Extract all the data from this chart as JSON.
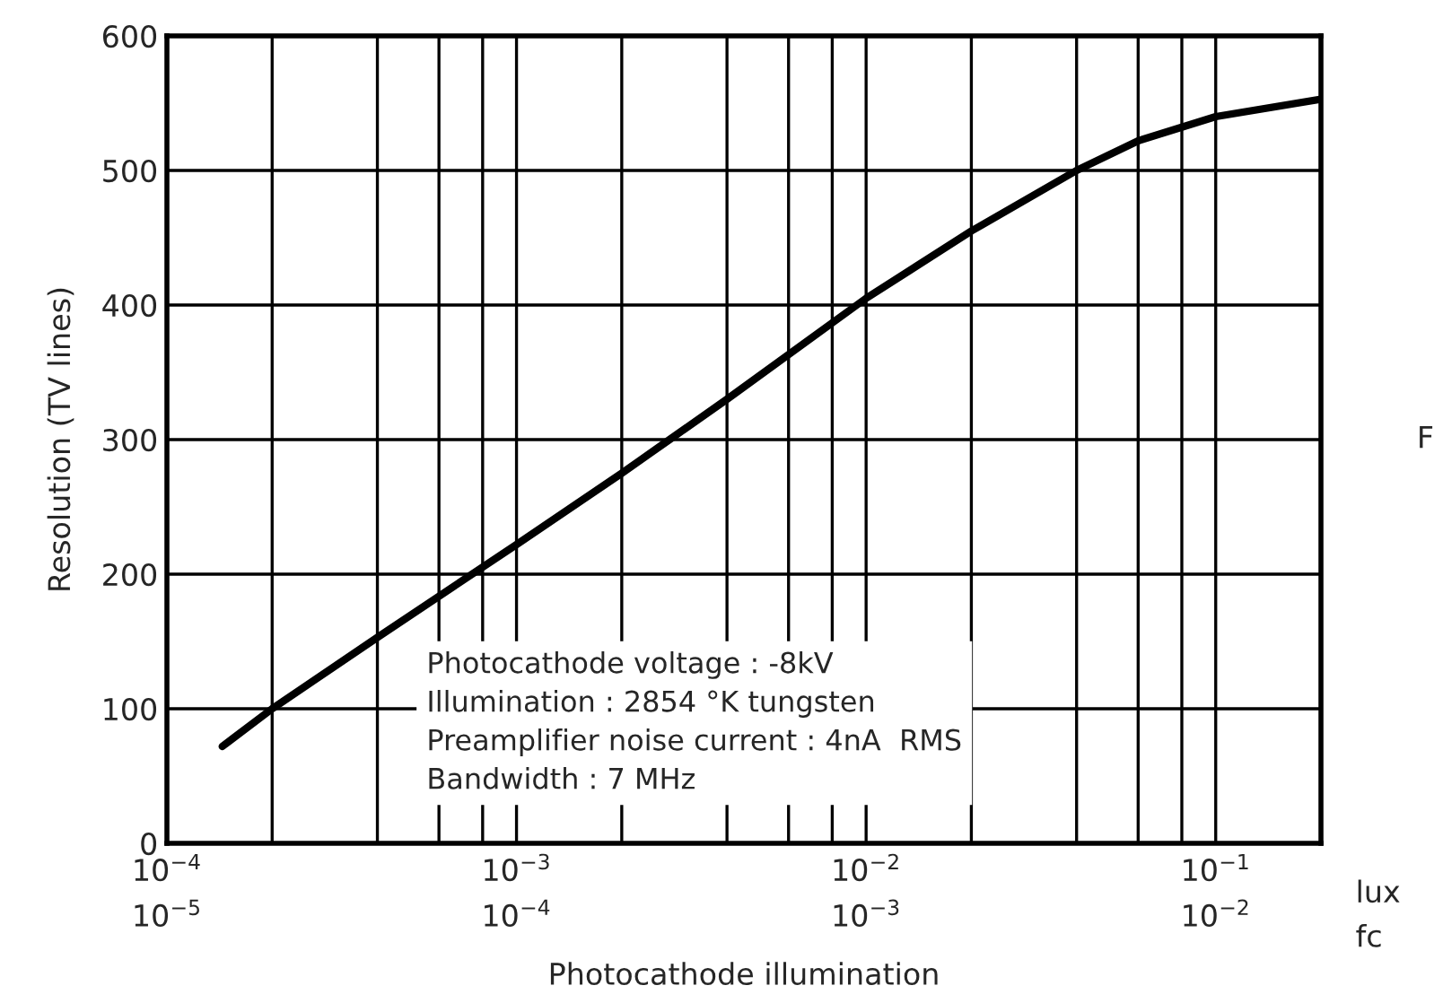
{
  "chart_data": {
    "type": "line",
    "xlabel": "Photocathode illumination",
    "ylabel": "Resolution (TV lines)",
    "log": "x",
    "x": [
      0.000144,
      0.0002,
      0.0004,
      0.001,
      0.002,
      0.00274,
      0.004,
      0.01,
      0.02,
      0.04,
      0.06,
      0.1,
      0.2
    ],
    "series": [
      {
        "color": "#000000",
        "values": [
          72,
          100,
          153,
          222,
          275,
          300,
          330,
          405,
          455,
          500,
          522,
          540,
          553
        ]
      }
    ],
    "xlim": [
      0.0001,
      0.2
    ],
    "xticks": [
      {
        "value": 0.0001,
        "label": "10$^{−4}$"
      },
      {
        "value": 0.0002,
        "label": null
      },
      {
        "value": 0.0004,
        "label": null
      },
      {
        "value": 0.0006,
        "label": null
      },
      {
        "value": 0.0008,
        "label": null
      },
      {
        "value": 0.001,
        "label": "10$^{−3}$"
      },
      {
        "value": 0.002,
        "label": null
      },
      {
        "value": 0.004,
        "label": null
      },
      {
        "value": 0.006,
        "label": null
      },
      {
        "value": 0.008,
        "label": null
      },
      {
        "value": 0.01,
        "label": "10$^{−2}$"
      },
      {
        "value": 0.02,
        "label": null
      },
      {
        "value": 0.04,
        "label": null
      },
      {
        "value": 0.06,
        "label": null
      },
      {
        "value": 0.08,
        "label": null
      },
      {
        "value": 0.1,
        "label": "10$^{−1}$"
      }
    ],
    "ylim": [
      0,
      600
    ],
    "yticks": [
      0,
      100,
      200,
      300,
      400,
      500,
      600
    ],
    "grid": true,
    "marker": "none",
    "line_style": "solid",
    "annotations": [
      "Photocathode voltage : -8kV\nIllumination : 2854 °K tungsten\nPreamplifier noise current : 4nA  RMS\nBandwidth : 7 MHz",
      "lux",
      "fc",
      "F",
      "10$^{−5}$",
      "10$^{−4}$",
      "10$^{−3}$",
      "10$^{−2}$"
    ]
  }
}
